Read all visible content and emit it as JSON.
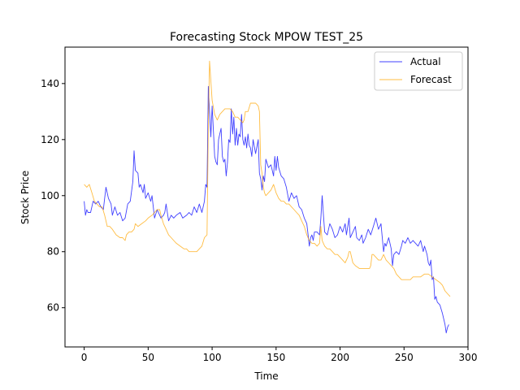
{
  "chart_data": {
    "type": "line",
    "title": "Forecasting Stock MPOW TEST_25",
    "xlabel": "Time",
    "ylabel": "Stock Price",
    "xlim": [
      -15,
      300
    ],
    "ylim": [
      46,
      153
    ],
    "xticks": [
      0,
      50,
      100,
      150,
      200,
      250,
      300
    ],
    "yticks": [
      60,
      80,
      100,
      120,
      140
    ],
    "grid": false,
    "legend_position": "top-right",
    "series": [
      {
        "name": "Actual",
        "color": "#0000ff",
        "points": [
          [
            0,
            98
          ],
          [
            1,
            93
          ],
          [
            2,
            95
          ],
          [
            3,
            94
          ],
          [
            5,
            94
          ],
          [
            7,
            98
          ],
          [
            9,
            97
          ],
          [
            11,
            98
          ],
          [
            13,
            96
          ],
          [
            15,
            95
          ],
          [
            17,
            103
          ],
          [
            19,
            99
          ],
          [
            21,
            97
          ],
          [
            22,
            93
          ],
          [
            24,
            96
          ],
          [
            26,
            93
          ],
          [
            28,
            94
          ],
          [
            30,
            91
          ],
          [
            32,
            92
          ],
          [
            34,
            97
          ],
          [
            36,
            98
          ],
          [
            38,
            105
          ],
          [
            39,
            116
          ],
          [
            40,
            109
          ],
          [
            42,
            108
          ],
          [
            43,
            103
          ],
          [
            44,
            104
          ],
          [
            46,
            101
          ],
          [
            47,
            104
          ],
          [
            48,
            99
          ],
          [
            50,
            101
          ],
          [
            52,
            98
          ],
          [
            53,
            100
          ],
          [
            55,
            92
          ],
          [
            57,
            95
          ],
          [
            60,
            92
          ],
          [
            62,
            93
          ],
          [
            63,
            94
          ],
          [
            64,
            97
          ],
          [
            66,
            91
          ],
          [
            68,
            93
          ],
          [
            70,
            92
          ],
          [
            72,
            93
          ],
          [
            75,
            94
          ],
          [
            77,
            92
          ],
          [
            80,
            93
          ],
          [
            82,
            94
          ],
          [
            84,
            93
          ],
          [
            86,
            96
          ],
          [
            88,
            94
          ],
          [
            90,
            97
          ],
          [
            92,
            94
          ],
          [
            94,
            98
          ],
          [
            95,
            104
          ],
          [
            96,
            103
          ],
          [
            97,
            139
          ],
          [
            98,
            130
          ],
          [
            99,
            121
          ],
          [
            100,
            132
          ],
          [
            101,
            123
          ],
          [
            102,
            114
          ],
          [
            103,
            112
          ],
          [
            104,
            111
          ],
          [
            105,
            120
          ],
          [
            106,
            122
          ],
          [
            107,
            124
          ],
          [
            108,
            114
          ],
          [
            109,
            112
          ],
          [
            110,
            113
          ],
          [
            111,
            107
          ],
          [
            112,
            112
          ],
          [
            113,
            120
          ],
          [
            114,
            119
          ],
          [
            115,
            131
          ],
          [
            116,
            122
          ],
          [
            117,
            128
          ],
          [
            118,
            118
          ],
          [
            119,
            124
          ],
          [
            120,
            118
          ],
          [
            121,
            122
          ],
          [
            122,
            121
          ],
          [
            123,
            129
          ],
          [
            124,
            120
          ],
          [
            125,
            118
          ],
          [
            126,
            121
          ],
          [
            127,
            117
          ],
          [
            128,
            122
          ],
          [
            129,
            118
          ],
          [
            130,
            117
          ],
          [
            131,
            114
          ],
          [
            132,
            120
          ],
          [
            134,
            115
          ],
          [
            136,
            120
          ],
          [
            137,
            108
          ],
          [
            138,
            106
          ],
          [
            139,
            102
          ],
          [
            140,
            107
          ],
          [
            141,
            105
          ],
          [
            142,
            113
          ],
          [
            144,
            110
          ],
          [
            146,
            111
          ],
          [
            148,
            107
          ],
          [
            149,
            114
          ],
          [
            150,
            109
          ],
          [
            151,
            114
          ],
          [
            152,
            110
          ],
          [
            154,
            107
          ],
          [
            156,
            106
          ],
          [
            158,
            103
          ],
          [
            160,
            98
          ],
          [
            162,
            101
          ],
          [
            164,
            99
          ],
          [
            166,
            100
          ],
          [
            168,
            96
          ],
          [
            170,
            95
          ],
          [
            172,
            92
          ],
          [
            174,
            90
          ],
          [
            175,
            86
          ],
          [
            176,
            82
          ],
          [
            177,
            85
          ],
          [
            178,
            86
          ],
          [
            179,
            84
          ],
          [
            180,
            87
          ],
          [
            182,
            87
          ],
          [
            184,
            86
          ],
          [
            185,
            92
          ],
          [
            186,
            100
          ],
          [
            187,
            93
          ],
          [
            188,
            87
          ],
          [
            190,
            86
          ],
          [
            192,
            90
          ],
          [
            194,
            88
          ],
          [
            196,
            85
          ],
          [
            198,
            86
          ],
          [
            200,
            89
          ],
          [
            202,
            87
          ],
          [
            204,
            90
          ],
          [
            205,
            86
          ],
          [
            207,
            92
          ],
          [
            208,
            85
          ],
          [
            210,
            87
          ],
          [
            212,
            89
          ],
          [
            213,
            85
          ],
          [
            215,
            84
          ],
          [
            217,
            86
          ],
          [
            218,
            83
          ],
          [
            220,
            85
          ],
          [
            222,
            88
          ],
          [
            224,
            86
          ],
          [
            226,
            89
          ],
          [
            228,
            92
          ],
          [
            230,
            88
          ],
          [
            232,
            90
          ],
          [
            234,
            80
          ],
          [
            235,
            83
          ],
          [
            236,
            82
          ],
          [
            238,
            85
          ],
          [
            240,
            81
          ],
          [
            241,
            75
          ],
          [
            242,
            79
          ],
          [
            244,
            80
          ],
          [
            246,
            79
          ],
          [
            248,
            82
          ],
          [
            249,
            84
          ],
          [
            251,
            83
          ],
          [
            253,
            85
          ],
          [
            255,
            83
          ],
          [
            257,
            84
          ],
          [
            259,
            83
          ],
          [
            261,
            82
          ],
          [
            263,
            84
          ],
          [
            265,
            80
          ],
          [
            266,
            82
          ],
          [
            268,
            79
          ],
          [
            269,
            76
          ],
          [
            270,
            75
          ],
          [
            271,
            77
          ],
          [
            272,
            70
          ],
          [
            273,
            71
          ],
          [
            274,
            63
          ],
          [
            275,
            64
          ],
          [
            276,
            62
          ],
          [
            278,
            61
          ],
          [
            280,
            58
          ],
          [
            282,
            54
          ],
          [
            283,
            51
          ],
          [
            284,
            53
          ],
          [
            285,
            54
          ]
        ]
      },
      {
        "name": "Forecast",
        "color": "#ffa500",
        "points": [
          [
            0,
            104
          ],
          [
            2,
            103
          ],
          [
            4,
            104
          ],
          [
            6,
            101
          ],
          [
            8,
            98
          ],
          [
            10,
            97
          ],
          [
            12,
            96
          ],
          [
            14,
            96
          ],
          [
            16,
            93
          ],
          [
            18,
            89
          ],
          [
            20,
            89
          ],
          [
            22,
            88
          ],
          [
            25,
            86
          ],
          [
            28,
            85
          ],
          [
            30,
            85
          ],
          [
            32,
            84
          ],
          [
            33,
            86
          ],
          [
            35,
            87
          ],
          [
            37,
            87
          ],
          [
            39,
            88
          ],
          [
            40,
            90
          ],
          [
            42,
            89
          ],
          [
            45,
            90
          ],
          [
            48,
            91
          ],
          [
            50,
            92
          ],
          [
            53,
            93
          ],
          [
            55,
            94
          ],
          [
            57,
            95
          ],
          [
            59,
            95
          ],
          [
            60,
            93
          ],
          [
            62,
            90
          ],
          [
            64,
            88
          ],
          [
            66,
            86
          ],
          [
            68,
            85
          ],
          [
            70,
            84
          ],
          [
            72,
            83
          ],
          [
            75,
            82
          ],
          [
            78,
            81
          ],
          [
            80,
            81
          ],
          [
            82,
            80
          ],
          [
            85,
            80
          ],
          [
            88,
            80
          ],
          [
            90,
            81
          ],
          [
            92,
            82
          ],
          [
            94,
            85
          ],
          [
            96,
            86
          ],
          [
            97,
            125
          ],
          [
            98,
            148
          ],
          [
            99,
            141
          ],
          [
            100,
            134
          ],
          [
            102,
            129
          ],
          [
            104,
            127
          ],
          [
            106,
            129
          ],
          [
            108,
            130
          ],
          [
            110,
            131
          ],
          [
            112,
            131
          ],
          [
            114,
            131
          ],
          [
            116,
            130
          ],
          [
            118,
            128
          ],
          [
            120,
            128
          ],
          [
            122,
            127
          ],
          [
            124,
            126
          ],
          [
            125,
            127
          ],
          [
            126,
            130
          ],
          [
            128,
            130
          ],
          [
            130,
            133
          ],
          [
            132,
            133
          ],
          [
            134,
            133
          ],
          [
            136,
            132
          ],
          [
            137,
            130
          ],
          [
            138,
            111
          ],
          [
            139,
            108
          ],
          [
            140,
            103
          ],
          [
            141,
            101
          ],
          [
            142,
            100
          ],
          [
            144,
            101
          ],
          [
            146,
            102
          ],
          [
            148,
            104
          ],
          [
            150,
            101
          ],
          [
            152,
            99
          ],
          [
            154,
            98
          ],
          [
            156,
            98
          ],
          [
            158,
            97
          ],
          [
            160,
            97
          ],
          [
            162,
            96
          ],
          [
            164,
            95
          ],
          [
            166,
            94
          ],
          [
            168,
            93
          ],
          [
            170,
            91
          ],
          [
            172,
            89
          ],
          [
            174,
            86
          ],
          [
            176,
            84
          ],
          [
            178,
            83
          ],
          [
            180,
            83
          ],
          [
            182,
            82
          ],
          [
            184,
            83
          ],
          [
            185,
            89
          ],
          [
            186,
            84
          ],
          [
            188,
            82
          ],
          [
            190,
            81
          ],
          [
            192,
            81
          ],
          [
            194,
            80
          ],
          [
            196,
            79
          ],
          [
            198,
            79
          ],
          [
            200,
            78
          ],
          [
            202,
            77
          ],
          [
            204,
            76
          ],
          [
            206,
            78
          ],
          [
            207,
            80
          ],
          [
            208,
            80
          ],
          [
            210,
            76
          ],
          [
            212,
            75
          ],
          [
            215,
            74
          ],
          [
            218,
            74
          ],
          [
            221,
            74
          ],
          [
            223,
            74
          ],
          [
            224,
            75
          ],
          [
            225,
            79
          ],
          [
            226,
            79
          ],
          [
            228,
            78
          ],
          [
            230,
            77
          ],
          [
            232,
            77
          ],
          [
            234,
            79
          ],
          [
            236,
            77
          ],
          [
            238,
            76
          ],
          [
            240,
            75
          ],
          [
            242,
            74
          ],
          [
            244,
            72
          ],
          [
            246,
            71
          ],
          [
            248,
            70
          ],
          [
            250,
            70
          ],
          [
            252,
            70
          ],
          [
            255,
            70
          ],
          [
            257,
            71
          ],
          [
            260,
            71
          ],
          [
            263,
            71
          ],
          [
            266,
            72
          ],
          [
            269,
            72
          ],
          [
            272,
            71
          ],
          [
            275,
            70
          ],
          [
            278,
            69
          ],
          [
            280,
            68
          ],
          [
            282,
            66
          ],
          [
            284,
            65
          ],
          [
            286,
            64
          ]
        ]
      }
    ]
  }
}
